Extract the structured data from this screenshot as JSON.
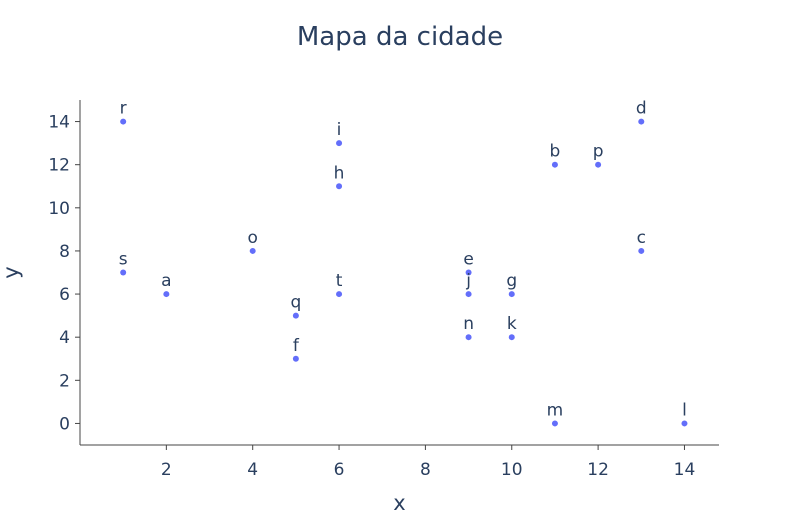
{
  "chart_data": {
    "type": "scatter",
    "title": "Mapa da cidade",
    "xlabel": "x",
    "ylabel": "y",
    "xlim": [
      0,
      14.8
    ],
    "ylim": [
      -1,
      15
    ],
    "xticks": [
      2,
      4,
      6,
      8,
      10,
      12,
      14
    ],
    "yticks": [
      0,
      2,
      4,
      6,
      8,
      10,
      12,
      14
    ],
    "grid": false,
    "marker_color": "#636efa",
    "points": [
      {
        "label": "r",
        "x": 1,
        "y": 14
      },
      {
        "label": "s",
        "x": 1,
        "y": 7
      },
      {
        "label": "a",
        "x": 2,
        "y": 6
      },
      {
        "label": "o",
        "x": 4,
        "y": 8
      },
      {
        "label": "q",
        "x": 5,
        "y": 5
      },
      {
        "label": "f",
        "x": 5,
        "y": 3
      },
      {
        "label": "i",
        "x": 6,
        "y": 13
      },
      {
        "label": "h",
        "x": 6,
        "y": 11
      },
      {
        "label": "t",
        "x": 6,
        "y": 6
      },
      {
        "label": "e",
        "x": 9,
        "y": 7
      },
      {
        "label": "j",
        "x": 9,
        "y": 6
      },
      {
        "label": "n",
        "x": 9,
        "y": 4
      },
      {
        "label": "g",
        "x": 10,
        "y": 6
      },
      {
        "label": "k",
        "x": 10,
        "y": 4
      },
      {
        "label": "b",
        "x": 11,
        "y": 12
      },
      {
        "label": "m",
        "x": 11,
        "y": 0
      },
      {
        "label": "p",
        "x": 12,
        "y": 12
      },
      {
        "label": "d",
        "x": 13,
        "y": 14
      },
      {
        "label": "c",
        "x": 13,
        "y": 8
      },
      {
        "label": "l",
        "x": 14,
        "y": 0
      }
    ]
  }
}
